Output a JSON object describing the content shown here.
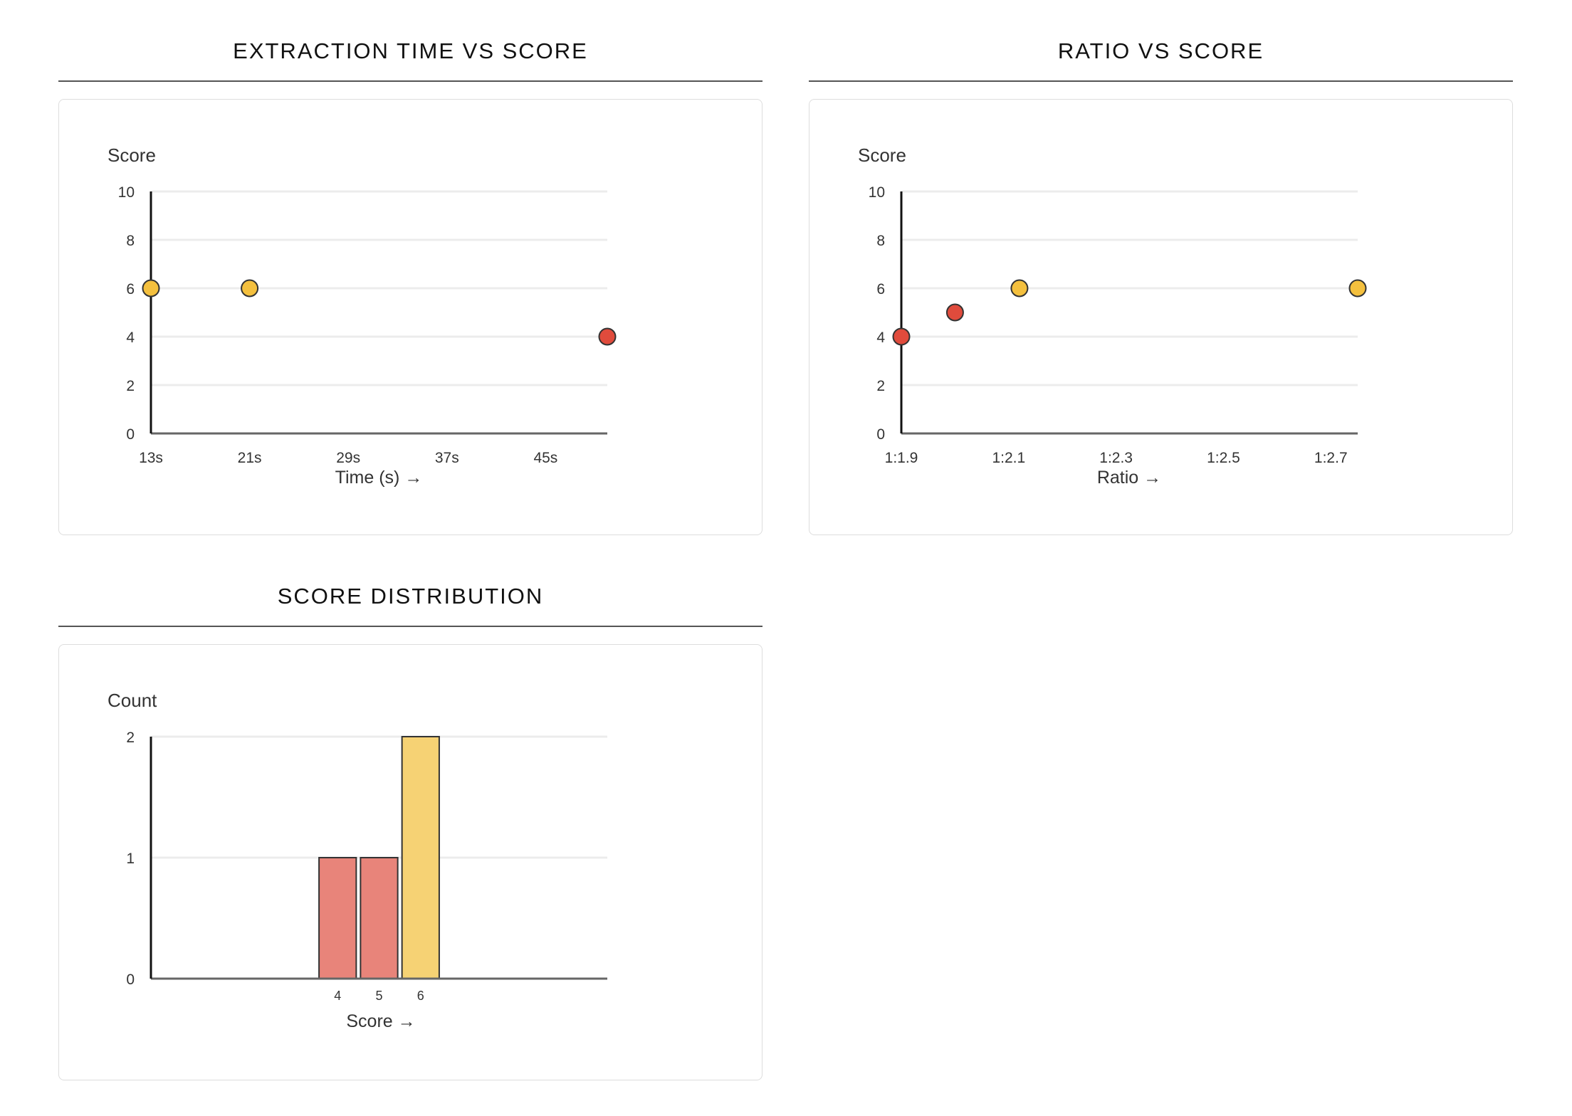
{
  "chart_data": [
    {
      "type": "scatter",
      "title": "EXTRACTION TIME VS SCORE",
      "ylabel": "Score",
      "xlabel": "Time (s) →",
      "xlim": [
        13,
        50
      ],
      "ylim": [
        0,
        10
      ],
      "yticks": [
        0,
        2,
        4,
        6,
        8,
        10
      ],
      "xticks": [
        {
          "value": 13,
          "label": "13s"
        },
        {
          "value": 21,
          "label": "21s"
        },
        {
          "value": 29,
          "label": "29s"
        },
        {
          "value": 37,
          "label": "37s"
        },
        {
          "value": 45,
          "label": "45s"
        }
      ],
      "grid": true,
      "points": [
        {
          "x": 13,
          "y": 6,
          "color": "#f4c03e"
        },
        {
          "x": 21,
          "y": 6,
          "color": "#f4c03e"
        },
        {
          "x": 50,
          "y": 4,
          "color": "#e04b3c"
        }
      ]
    },
    {
      "type": "scatter",
      "title": "RATIO VS SCORE",
      "ylabel": "Score",
      "xlabel": "Ratio →",
      "xlim": [
        1.9,
        2.75
      ],
      "ylim": [
        0,
        10
      ],
      "yticks": [
        0,
        2,
        4,
        6,
        8,
        10
      ],
      "xticks": [
        {
          "value": 1.9,
          "label": "1:1.9"
        },
        {
          "value": 2.1,
          "label": "1:2.1"
        },
        {
          "value": 2.3,
          "label": "1:2.3"
        },
        {
          "value": 2.5,
          "label": "1:2.5"
        },
        {
          "value": 2.7,
          "label": "1:2.7"
        }
      ],
      "grid": true,
      "points": [
        {
          "x": 1.9,
          "y": 4,
          "color": "#e04b3c"
        },
        {
          "x": 2.0,
          "y": 5,
          "color": "#e04b3c"
        },
        {
          "x": 2.12,
          "y": 6,
          "color": "#f4c03e"
        },
        {
          "x": 2.75,
          "y": 6,
          "color": "#f4c03e"
        }
      ]
    },
    {
      "type": "bar",
      "title": "SCORE DISTRIBUTION",
      "ylabel": "Count",
      "xlabel": "Score →",
      "xlim": [
        0,
        10
      ],
      "ylim": [
        0,
        2
      ],
      "yticks": [
        0,
        1,
        2
      ],
      "grid": true,
      "categories": [
        "4",
        "5",
        "6"
      ],
      "values": [
        1,
        1,
        2
      ],
      "colors": [
        "#e8847a",
        "#e8847a",
        "#f6d274"
      ]
    }
  ]
}
